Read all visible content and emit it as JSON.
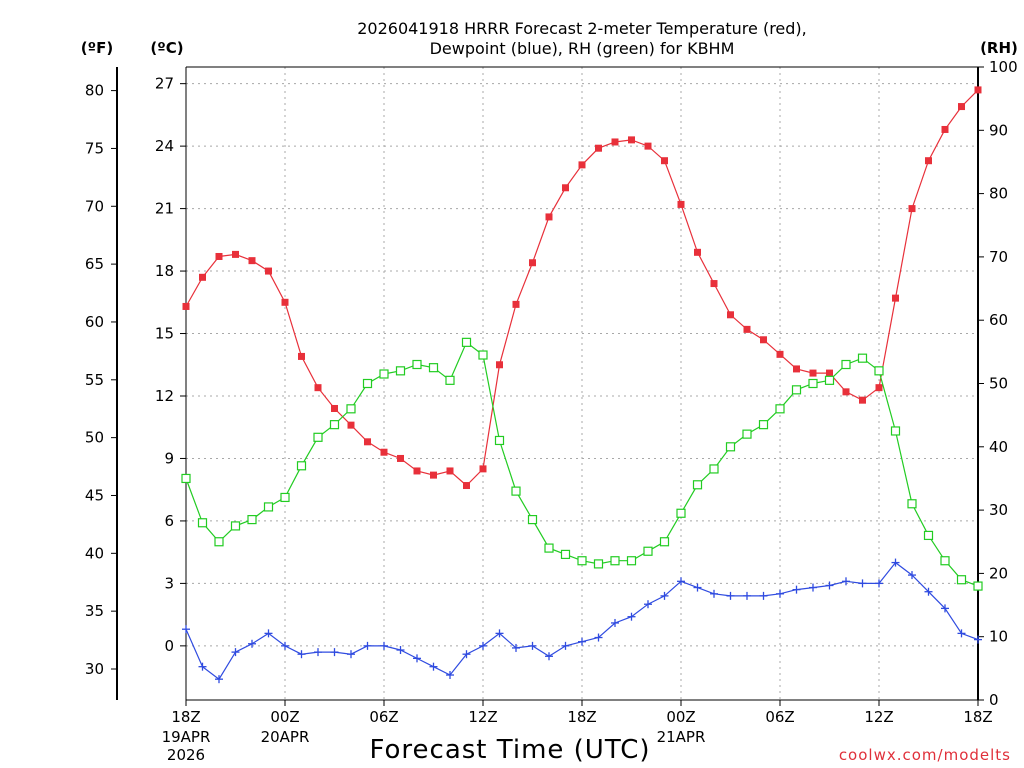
{
  "chart_data": {
    "type": "line",
    "title_line1": "2026041918 HRRR Forecast 2-meter Temperature (red),",
    "title_line2": "Dewpoint (blue), RH (green) for KBHM",
    "xlabel": "Forecast Time (UTC)",
    "credit": "coolwx.com/modelts",
    "units": {
      "fahrenheit": "(ºF)",
      "celsius": "(ºC)",
      "rh": "(RH)"
    },
    "x_range_hours": [
      0,
      48
    ],
    "celsius_range": [
      -2.6,
      27.8
    ],
    "rh_range": [
      0,
      100
    ],
    "fahrenheit_ticks": [
      "80",
      "75",
      "70",
      "65",
      "60",
      "55",
      "50",
      "45",
      "40",
      "35",
      "30"
    ],
    "celsius_ticks": [
      "27",
      "24",
      "21",
      "18",
      "15",
      "12",
      "9",
      "6",
      "3",
      "0"
    ],
    "rh_ticks": [
      "100",
      "90",
      "80",
      "70",
      "60",
      "50",
      "40",
      "30",
      "20",
      "10",
      "0"
    ],
    "x_ticks": [
      {
        "hour": 0,
        "label": "18Z",
        "sub": [
          "19APR",
          "2026"
        ]
      },
      {
        "hour": 6,
        "label": "00Z",
        "sub": [
          "20APR"
        ]
      },
      {
        "hour": 12,
        "label": "06Z",
        "sub": []
      },
      {
        "hour": 18,
        "label": "12Z",
        "sub": []
      },
      {
        "hour": 24,
        "label": "18Z",
        "sub": []
      },
      {
        "hour": 30,
        "label": "00Z",
        "sub": [
          "21APR"
        ]
      },
      {
        "hour": 36,
        "label": "06Z",
        "sub": []
      },
      {
        "hour": 42,
        "label": "12Z",
        "sub": []
      },
      {
        "hour": 48,
        "label": "18Z",
        "sub": []
      }
    ],
    "series": [
      {
        "name": "Temperature",
        "units": "C",
        "color": "#e8303a",
        "marker": "filled-square",
        "values": [
          16.3,
          17.7,
          18.7,
          18.8,
          18.5,
          18.0,
          16.5,
          13.9,
          12.4,
          11.4,
          10.6,
          9.8,
          9.3,
          9.0,
          8.4,
          8.2,
          8.4,
          7.7,
          8.5,
          13.5,
          16.4,
          18.4,
          20.6,
          22.0,
          23.1,
          23.9,
          24.2,
          24.3,
          24.0,
          23.3,
          21.2,
          18.9,
          17.4,
          15.9,
          15.2,
          14.7,
          14.0,
          13.3,
          13.1,
          13.1,
          12.2,
          11.8,
          12.4,
          16.7,
          21.0,
          23.3,
          24.8,
          25.9,
          26.7
        ]
      },
      {
        "name": "Dewpoint",
        "units": "C",
        "color": "#2f4be0",
        "marker": "plus",
        "values": [
          0.8,
          -1.0,
          -1.6,
          -0.3,
          0.1,
          0.6,
          0.0,
          -0.4,
          -0.3,
          -0.3,
          -0.4,
          0.0,
          0.0,
          -0.2,
          -0.6,
          -1.0,
          -1.4,
          -0.4,
          0.0,
          0.6,
          -0.1,
          0.0,
          -0.5,
          0.0,
          0.2,
          0.4,
          1.1,
          1.4,
          2.0,
          2.4,
          3.1,
          2.8,
          2.5,
          2.4,
          2.4,
          2.4,
          2.5,
          2.7,
          2.8,
          2.9,
          3.1,
          3.0,
          3.0,
          4.0,
          3.4,
          2.6,
          1.8,
          0.6,
          0.3
        ]
      },
      {
        "name": "RH",
        "units": "%",
        "color": "#22cc22",
        "marker": "open-square",
        "values": [
          35,
          28,
          25,
          27.5,
          28.5,
          30.5,
          32,
          37,
          41.5,
          43.5,
          46,
          50,
          51.5,
          52,
          53,
          52.5,
          50.5,
          56.5,
          54.5,
          41,
          33,
          28.5,
          24,
          23,
          22,
          21.5,
          22,
          22,
          23.5,
          25,
          29.5,
          34,
          36.5,
          40,
          42,
          43.5,
          46,
          49,
          50,
          50.5,
          53,
          54,
          52,
          42.5,
          31,
          26,
          22,
          19,
          18
        ]
      }
    ]
  }
}
